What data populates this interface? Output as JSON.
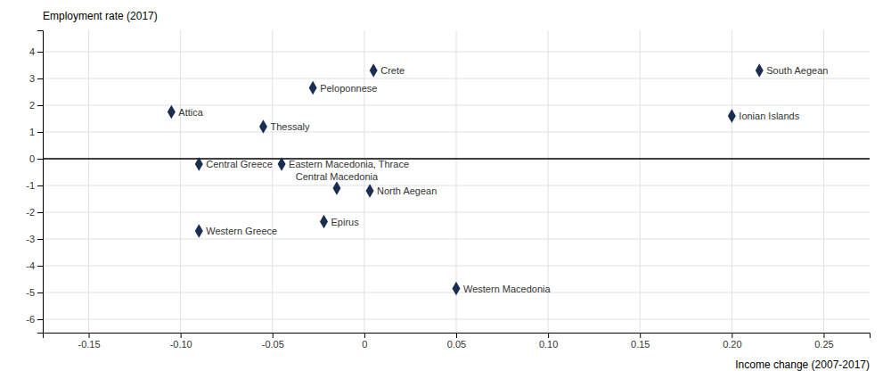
{
  "chart_data": {
    "type": "scatter",
    "labels": [
      "Crete",
      "Peloponnese",
      "Attica",
      "Thessaly",
      "Central Greece",
      "Eastern Macedonia, Thrace",
      "Central Macedonia",
      "North Aegean",
      "Western Greece",
      "Epirus",
      "Western Macedonia",
      "Ionian Islands",
      "South Aegean"
    ],
    "x": [
      0.005,
      -0.028,
      -0.105,
      -0.055,
      -0.09,
      -0.045,
      -0.015,
      0.003,
      -0.09,
      -0.022,
      0.05,
      0.2,
      0.215
    ],
    "values": [
      3.3,
      2.65,
      1.75,
      1.2,
      -0.2,
      -0.2,
      -1.1,
      -1.2,
      -2.7,
      -2.35,
      -4.85,
      1.6,
      3.3
    ],
    "color": "#1a2e52",
    "marker": "diamond",
    "xlabel": "Income change (2007-2017)",
    "ylabel": "Employment rate (2017)",
    "xlim": [
      -0.175,
      0.275
    ],
    "ylim": [
      -6.5,
      4.8
    ],
    "xticks": [
      -0.15,
      {
        "value": -0.1,
        "label": "-0.10"
      },
      -0.05,
      0,
      0.05,
      {
        "value": 0.1,
        "label": "0.10"
      },
      0.15,
      {
        "value": 0.2,
        "label": "0.20"
      },
      0.25
    ],
    "yticks": [
      -6,
      -5,
      -4,
      -3,
      -2,
      -1,
      0,
      1,
      2,
      3,
      4
    ],
    "grid": true
  }
}
